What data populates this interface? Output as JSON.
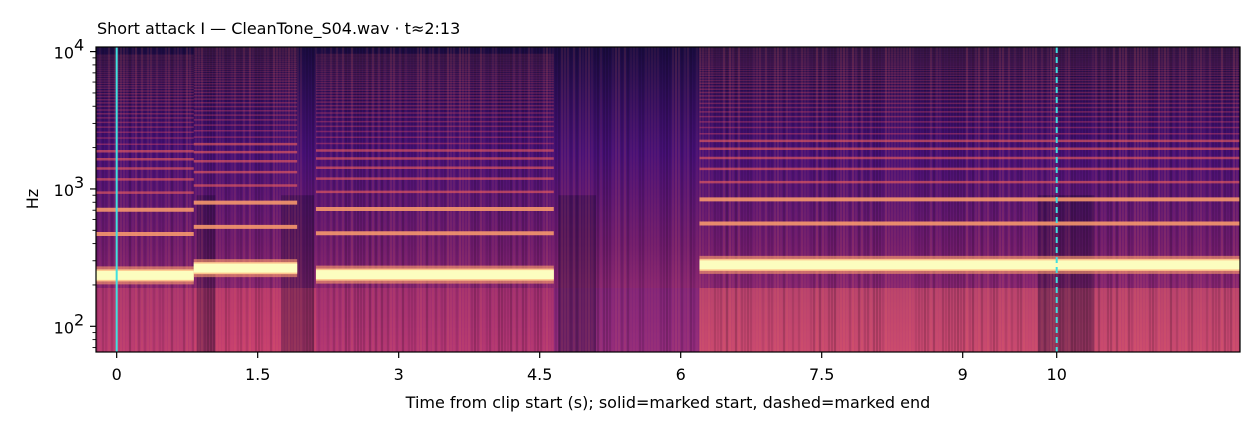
{
  "chart_data": {
    "type": "heatmap",
    "title": "Short attack I  —  CleanTone_S04.wav · t≈2:13",
    "xlabel": "Time from clip start (s); solid=marked start, dashed=marked end",
    "ylabel": "Hz",
    "xlim": [
      -0.22,
      11.95
    ],
    "ylim": [
      65,
      10800
    ],
    "yscale": "log",
    "colormap": "magma",
    "x_ticks": [
      0,
      1.5,
      3,
      4.5,
      6,
      7.5,
      9,
      10
    ],
    "x_tick_labels": [
      "0",
      "1.5",
      "3",
      "4.5",
      "6",
      "7.5",
      "9",
      "10"
    ],
    "y_ticks": [
      100,
      1000,
      10000
    ],
    "y_tick_labels": [
      "10",
      "10",
      "10"
    ],
    "y_tick_exponents": [
      "2",
      "3",
      "4"
    ],
    "markers": [
      {
        "label": "marked start",
        "x": 0.0,
        "style": "solid",
        "color": "#40e0e0"
      },
      {
        "label": "marked end",
        "x": 10.0,
        "style": "dashed",
        "color": "#40e0e0"
      }
    ],
    "segments": [
      {
        "t_start": -0.22,
        "t_end": 0.82,
        "f0": 235
      },
      {
        "t_start": 0.82,
        "t_end": 1.92,
        "f0": 265
      },
      {
        "t_start": 2.12,
        "t_end": 4.65,
        "f0": 238
      },
      {
        "t_start": 6.2,
        "t_end": 11.95,
        "f0": 280
      }
    ]
  }
}
